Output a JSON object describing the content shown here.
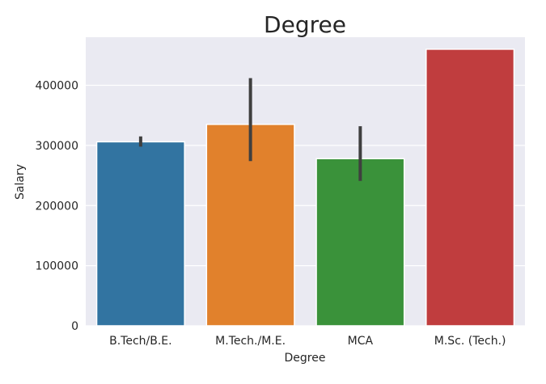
{
  "chart_data": {
    "type": "bar",
    "title": "Degree",
    "xlabel": "Degree",
    "ylabel": "Salary",
    "categories": [
      "B.Tech/B.E.",
      "M.Tech./M.E.",
      "MCA",
      "M.Sc. (Tech.)"
    ],
    "values": [
      306000,
      335000,
      278000,
      460000
    ],
    "error_bars": [
      {
        "low": 298000,
        "high": 315000
      },
      {
        "low": 274000,
        "high": 412000
      },
      {
        "low": 241000,
        "high": 332000
      },
      null
    ],
    "colors": [
      "#3274a1",
      "#e1812c",
      "#3a923a",
      "#c03d3e"
    ],
    "ylim": [
      0,
      480000
    ],
    "yticks": [
      0,
      100000,
      200000,
      300000,
      400000
    ],
    "ytick_labels": [
      "0",
      "100000",
      "200000",
      "300000",
      "400000"
    ],
    "grid": true,
    "background": "#eaeaf2"
  }
}
